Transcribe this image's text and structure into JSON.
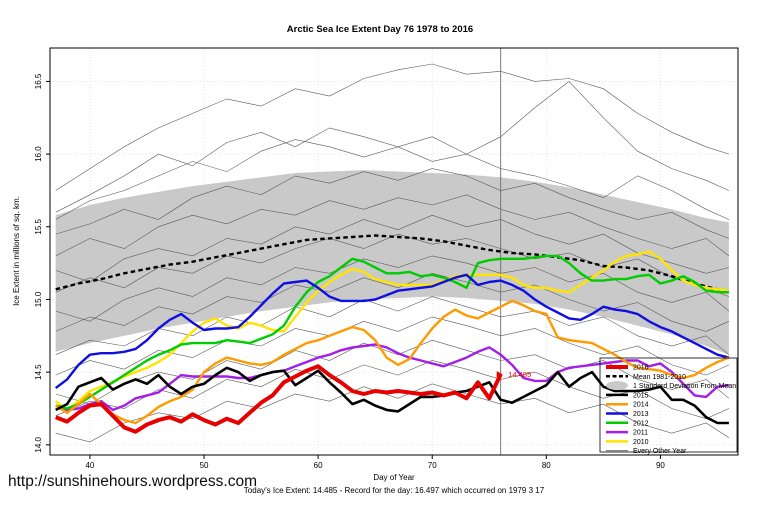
{
  "page": {
    "title": "Arctic Sea Ice Extent Day 76 1978 to 2016",
    "footer_url": "http://sunshinehours.wordpress.com",
    "footer_caption": "Today's Ice Extent: 14.485  - Record for the day: 16.497 which occurred on 1979 3 17"
  },
  "chart_data": {
    "type": "line",
    "title": "Arctic Sea Ice Extent Day 76 1978 to 2016",
    "xlabel": "Day of Year",
    "ylabel": "Ice Extent in millions of sq. km.",
    "xlim": [
      36.5,
      96.8
    ],
    "ylim": [
      13.93,
      16.73
    ],
    "xticks": [
      40,
      50,
      60,
      70,
      80,
      90
    ],
    "yticks": [
      14.0,
      14.5,
      15.0,
      15.5,
      16.0,
      16.5
    ],
    "grid": true,
    "legend_position": "bottom-right",
    "vline_day": 76,
    "annotation": {
      "text": "14.485",
      "day": 76,
      "value": 14.485,
      "color": "#e60000"
    },
    "band": {
      "name": "1 Standard Deviation From Mean",
      "color": "#c9c9c9",
      "days": [
        37,
        40,
        43,
        46,
        49,
        52,
        55,
        58,
        61,
        64,
        67,
        70,
        73,
        76,
        79,
        82,
        85,
        88,
        91,
        94,
        96
      ],
      "upper": [
        15.58,
        15.65,
        15.7,
        15.74,
        15.78,
        15.81,
        15.84,
        15.87,
        15.88,
        15.89,
        15.88,
        15.87,
        15.86,
        15.84,
        15.81,
        15.77,
        15.72,
        15.67,
        15.62,
        15.56,
        15.53
      ],
      "lower": [
        14.64,
        14.7,
        14.75,
        14.8,
        14.84,
        14.88,
        14.92,
        14.95,
        14.98,
        15.0,
        15.01,
        15.02,
        15.01,
        14.99,
        14.97,
        14.93,
        14.88,
        14.82,
        14.76,
        14.68,
        14.62
      ]
    },
    "mean": {
      "name": "Mean 1981-2010",
      "color": "#000000",
      "days": [
        37,
        39,
        41,
        43,
        45,
        47,
        49,
        51,
        53,
        55,
        57,
        59,
        61,
        63,
        65,
        67,
        69,
        71,
        73,
        75,
        77,
        79,
        81,
        83,
        85,
        87,
        89,
        91,
        93,
        95,
        96
      ],
      "values": [
        15.07,
        15.11,
        15.14,
        15.18,
        15.21,
        15.24,
        15.26,
        15.29,
        15.32,
        15.35,
        15.38,
        15.41,
        15.42,
        15.43,
        15.44,
        15.43,
        15.42,
        15.4,
        15.37,
        15.34,
        15.32,
        15.31,
        15.29,
        15.27,
        15.23,
        15.22,
        15.2,
        15.16,
        15.11,
        15.07,
        15.05
      ]
    },
    "series": [
      {
        "name": "2010",
        "color": "#ffe400",
        "width": 2.4,
        "start_day": 37,
        "values": [
          14.3,
          14.24,
          14.3,
          14.37,
          14.4,
          14.43,
          14.47,
          14.5,
          14.53,
          14.57,
          14.62,
          14.7,
          14.78,
          14.84,
          14.87,
          14.82,
          14.8,
          14.84,
          14.82,
          14.79,
          14.78,
          14.88,
          14.98,
          15.06,
          15.12,
          15.17,
          15.21,
          15.19,
          15.14,
          15.12,
          15.1,
          15.1,
          15.1,
          15.1,
          15.13,
          15.16,
          15.17,
          15.17,
          15.17,
          15.17,
          15.15,
          15.1,
          15.08,
          15.08,
          15.06,
          15.05,
          15.1,
          15.15,
          15.2,
          15.26,
          15.3,
          15.31,
          15.33,
          15.28,
          15.2,
          15.13,
          15.1,
          15.08,
          15.07,
          15.06
        ]
      },
      {
        "name": "2011",
        "color": "#a21fe8",
        "width": 2.4,
        "start_day": 37,
        "values": [
          14.27,
          14.24,
          14.25,
          14.28,
          14.3,
          14.24,
          14.27,
          14.32,
          14.34,
          14.36,
          14.42,
          14.48,
          14.47,
          14.47,
          14.47,
          14.47,
          14.46,
          14.46,
          14.48,
          14.5,
          14.51,
          14.54,
          14.57,
          14.6,
          14.62,
          14.65,
          14.67,
          14.68,
          14.69,
          14.67,
          14.63,
          14.6,
          14.58,
          14.56,
          14.54,
          14.57,
          14.6,
          14.64,
          14.67,
          14.62,
          14.55,
          14.46,
          14.44,
          14.44,
          14.5,
          14.53,
          14.54,
          14.55,
          14.56,
          14.57,
          14.58,
          14.58,
          14.54,
          14.56,
          14.5,
          14.42,
          14.34,
          14.33,
          14.4,
          14.41
        ]
      },
      {
        "name": "2012",
        "color": "#00cc00",
        "width": 2.4,
        "start_day": 37,
        "values": [
          14.27,
          14.25,
          14.28,
          14.33,
          14.38,
          14.43,
          14.48,
          14.53,
          14.58,
          14.62,
          14.65,
          14.69,
          14.7,
          14.7,
          14.7,
          14.72,
          14.71,
          14.7,
          14.73,
          14.76,
          14.82,
          14.95,
          15.05,
          15.12,
          15.16,
          15.22,
          15.28,
          15.26,
          15.22,
          15.18,
          15.18,
          15.19,
          15.16,
          15.17,
          15.15,
          15.12,
          15.08,
          15.25,
          15.27,
          15.28,
          15.28,
          15.28,
          15.29,
          15.3,
          15.3,
          15.25,
          15.18,
          15.13,
          15.13,
          15.14,
          15.14,
          15.16,
          15.17,
          15.11,
          15.13,
          15.16,
          15.12,
          15.06,
          15.05,
          15.05
        ]
      },
      {
        "name": "2013",
        "color": "#0f0fe0",
        "width": 2.4,
        "start_day": 37,
        "values": [
          14.39,
          14.45,
          14.55,
          14.62,
          14.63,
          14.63,
          14.64,
          14.66,
          14.72,
          14.8,
          14.86,
          14.9,
          14.84,
          14.79,
          14.8,
          14.8,
          14.81,
          14.88,
          14.96,
          15.04,
          15.11,
          15.12,
          15.13,
          15.08,
          15.02,
          14.99,
          14.99,
          14.99,
          15.0,
          15.03,
          15.06,
          15.07,
          15.08,
          15.09,
          15.12,
          15.15,
          15.17,
          15.1,
          15.12,
          15.13,
          15.1,
          15.06,
          15.0,
          14.95,
          14.91,
          14.87,
          14.86,
          14.9,
          14.95,
          14.93,
          14.92,
          14.9,
          14.85,
          14.81,
          14.78,
          14.74,
          14.7,
          14.66,
          14.62,
          14.6
        ]
      },
      {
        "name": "2014",
        "color": "#ff9a00",
        "width": 2.4,
        "start_day": 37,
        "values": [
          14.27,
          14.22,
          14.28,
          14.35,
          14.28,
          14.21,
          14.17,
          14.15,
          14.2,
          14.26,
          14.3,
          14.33,
          14.38,
          14.5,
          14.56,
          14.6,
          14.58,
          14.56,
          14.55,
          14.57,
          14.62,
          14.66,
          14.7,
          14.72,
          14.75,
          14.78,
          14.81,
          14.79,
          14.72,
          14.6,
          14.55,
          14.59,
          14.7,
          14.8,
          14.88,
          14.93,
          14.89,
          14.87,
          14.91,
          14.95,
          14.99,
          14.96,
          14.92,
          14.9,
          14.74,
          14.72,
          14.71,
          14.7,
          14.66,
          14.62,
          14.57,
          14.53,
          14.52,
          14.51,
          14.48,
          14.46,
          14.48,
          14.53,
          14.57,
          14.6
        ]
      },
      {
        "name": "2015",
        "color": "#000000",
        "width": 2.6,
        "start_day": 37,
        "values": [
          14.24,
          14.28,
          14.4,
          14.43,
          14.46,
          14.38,
          14.42,
          14.45,
          14.42,
          14.48,
          14.4,
          14.35,
          14.4,
          14.42,
          14.48,
          14.53,
          14.5,
          14.44,
          14.48,
          14.5,
          14.51,
          14.41,
          14.46,
          14.51,
          14.43,
          14.36,
          14.28,
          14.31,
          14.27,
          14.24,
          14.23,
          14.28,
          14.33,
          14.33,
          14.34,
          14.36,
          14.37,
          14.4,
          14.43,
          14.31,
          14.29,
          14.33,
          14.37,
          14.41,
          14.5,
          14.4,
          14.46,
          14.5,
          14.4,
          14.37,
          14.37,
          14.37,
          14.38,
          14.4,
          14.31,
          14.31,
          14.27,
          14.19,
          14.15,
          14.15
        ]
      },
      {
        "name": "2016",
        "color": "#e60000",
        "width": 4.0,
        "start_day": 37,
        "values": [
          14.19,
          14.16,
          14.22,
          14.27,
          14.28,
          14.2,
          14.12,
          14.09,
          14.14,
          14.17,
          14.19,
          14.16,
          14.21,
          14.17,
          14.14,
          14.18,
          14.15,
          14.22,
          14.29,
          14.34,
          14.43,
          14.47,
          14.51,
          14.54,
          14.48,
          14.43,
          14.37,
          14.35,
          14.37,
          14.36,
          14.37,
          14.36,
          14.35,
          14.36,
          14.34,
          14.36,
          14.32,
          14.43,
          14.32,
          14.485
        ]
      }
    ],
    "background": {
      "name": "Every Other Year",
      "color": "#5a5a5a",
      "days": [
        37,
        40,
        43,
        46,
        49,
        52,
        55,
        58,
        61,
        64,
        67,
        70,
        73,
        76,
        79,
        82,
        85,
        88,
        91,
        94,
        96
      ],
      "lines": [
        [
          15.75,
          15.9,
          16.05,
          16.18,
          16.28,
          16.38,
          16.33,
          16.45,
          16.4,
          16.52,
          16.58,
          16.62,
          16.55,
          16.57,
          16.5,
          16.52,
          16.45,
          16.28,
          16.15,
          16.05,
          16.0
        ],
        [
          15.6,
          15.72,
          15.85,
          16.0,
          15.92,
          16.08,
          16.15,
          16.05,
          16.18,
          16.12,
          16.05,
          16.12,
          16.0,
          16.12,
          16.32,
          16.5,
          16.25,
          16.02,
          15.9,
          15.82,
          15.75
        ],
        [
          15.55,
          15.68,
          15.75,
          15.85,
          15.95,
          15.88,
          16.02,
          16.1,
          16.05,
          15.98,
          16.05,
          15.95,
          16.0,
          15.9,
          15.85,
          15.78,
          15.7,
          15.85,
          15.75,
          15.62,
          15.55
        ],
        [
          15.45,
          15.52,
          15.62,
          15.55,
          15.7,
          15.78,
          15.72,
          15.85,
          15.8,
          15.88,
          15.82,
          15.9,
          15.85,
          15.75,
          15.8,
          15.7,
          15.62,
          15.55,
          15.6,
          15.48,
          15.42
        ],
        [
          15.3,
          15.42,
          15.35,
          15.5,
          15.58,
          15.52,
          15.62,
          15.58,
          15.68,
          15.62,
          15.7,
          15.65,
          15.72,
          15.62,
          15.55,
          15.6,
          15.5,
          15.42,
          15.35,
          15.42,
          15.3
        ],
        [
          15.2,
          15.12,
          15.28,
          15.35,
          15.3,
          15.42,
          15.38,
          15.5,
          15.45,
          15.55,
          15.48,
          15.58,
          15.5,
          15.55,
          15.45,
          15.38,
          15.45,
          15.32,
          15.25,
          15.18,
          15.22
        ],
        [
          15.05,
          15.15,
          15.08,
          15.22,
          15.18,
          15.3,
          15.25,
          15.35,
          15.42,
          15.35,
          15.45,
          15.38,
          15.42,
          15.35,
          15.28,
          15.32,
          15.22,
          15.28,
          15.15,
          15.08,
          15.02
        ],
        [
          14.92,
          14.85,
          15.0,
          15.08,
          15.02,
          15.15,
          15.1,
          15.22,
          15.18,
          15.28,
          15.22,
          15.3,
          15.25,
          15.18,
          15.22,
          15.12,
          15.18,
          15.05,
          14.98,
          15.05,
          14.92
        ],
        [
          14.78,
          14.88,
          14.82,
          14.95,
          14.9,
          15.02,
          14.98,
          15.1,
          15.05,
          15.15,
          15.08,
          15.18,
          15.12,
          15.05,
          15.1,
          15.0,
          14.92,
          14.98,
          14.85,
          14.78,
          14.85
        ],
        [
          14.62,
          14.72,
          14.68,
          14.8,
          14.75,
          14.88,
          14.82,
          14.95,
          14.88,
          15.0,
          14.92,
          15.02,
          14.95,
          14.88,
          14.92,
          14.82,
          14.88,
          14.75,
          14.68,
          14.75,
          14.62
        ],
        [
          14.48,
          14.58,
          14.52,
          14.65,
          14.6,
          14.72,
          14.68,
          14.8,
          14.75,
          14.85,
          14.78,
          14.88,
          14.82,
          14.75,
          14.8,
          14.7,
          14.62,
          14.68,
          14.55,
          14.48,
          14.55
        ],
        [
          14.35,
          14.28,
          14.42,
          14.5,
          14.45,
          14.58,
          14.52,
          14.65,
          14.58,
          14.7,
          14.62,
          14.72,
          14.65,
          14.58,
          14.62,
          14.52,
          14.58,
          14.45,
          14.38,
          14.45,
          14.32
        ],
        [
          14.2,
          14.3,
          14.25,
          14.38,
          14.32,
          14.45,
          14.4,
          14.52,
          14.45,
          14.55,
          14.48,
          14.58,
          14.52,
          14.45,
          14.5,
          14.4,
          14.32,
          14.38,
          14.25,
          14.18,
          14.25
        ],
        [
          14.08,
          14.02,
          14.15,
          14.22,
          14.18,
          14.3,
          14.25,
          14.35,
          14.3,
          14.4,
          14.32,
          14.42,
          14.35,
          14.28,
          14.32,
          14.22,
          14.28,
          14.15,
          14.08,
          14.15,
          14.05
        ]
      ]
    },
    "legend": [
      {
        "label": "2016",
        "swatch": "line-thick",
        "color": "#e60000"
      },
      {
        "label": "Mean 1981-2010",
        "swatch": "line-dashed",
        "color": "#000000"
      },
      {
        "label": "1 Standard Deviation From Mean",
        "swatch": "ellipse",
        "color": "#c9c9c9"
      },
      {
        "label": "2015",
        "swatch": "line",
        "color": "#000000"
      },
      {
        "label": "2014",
        "swatch": "line",
        "color": "#ff9a00"
      },
      {
        "label": "2013",
        "swatch": "line",
        "color": "#0f0fe0"
      },
      {
        "label": "2012",
        "swatch": "line",
        "color": "#00cc00"
      },
      {
        "label": "2011",
        "swatch": "line",
        "color": "#a21fe8"
      },
      {
        "label": "2010",
        "swatch": "line",
        "color": "#ffe400"
      },
      {
        "label": "Every Other Year",
        "swatch": "line-thin",
        "color": "#5a5a5a"
      }
    ]
  }
}
